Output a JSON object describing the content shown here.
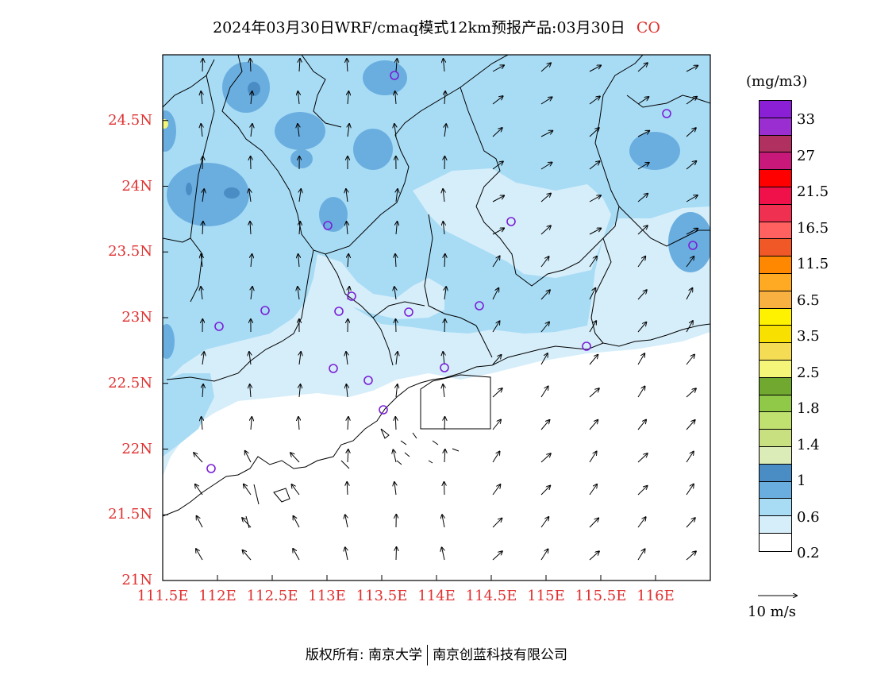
{
  "title": "2024年03月30日WRF/cmaq模式12km预报产品:03月30日",
  "species": "CO",
  "colors": {
    "title_species": "#e03030",
    "axis_labels": "#e03030",
    "station": "#7a1fd6",
    "pollutant_levels": [
      "#ffffff",
      "#d6eefa",
      "#a8dcf5",
      "#6aaee0",
      "#4a8cc4"
    ]
  },
  "axes": {
    "lat_labels": [
      "24.5N",
      "24N",
      "23.5N",
      "23N",
      "22.5N",
      "22N",
      "21.5N",
      "21N"
    ],
    "lon_labels": [
      "111.5E",
      "112E",
      "112.5E",
      "113E",
      "113.5E",
      "114E",
      "114.5E",
      "115E",
      "115.5E",
      "116E"
    ],
    "lat_range": [
      21.0,
      25.0
    ],
    "lon_range": [
      111.5,
      116.5
    ]
  },
  "legend": {
    "title": "(mg/m3)",
    "colors": [
      "#8b1fd6",
      "#9a2ed0",
      "#b03060",
      "#c8187a",
      "#ff0000",
      "#f0104a",
      "#f03050",
      "#ff6060",
      "#f05828",
      "#ff8800",
      "#ffaa22",
      "#f8b040",
      "#fff200",
      "#f8e000",
      "#f5dc55",
      "#f5f57a",
      "#70a830",
      "#90c848",
      "#c0e070",
      "#c8e080",
      "#dcecb8",
      "#4a8cc4",
      "#6aaee0",
      "#a8dcf5",
      "#d6eefa",
      "#ffffff"
    ],
    "labels": [
      "33",
      "27",
      "21.5",
      "16.5",
      "11.5",
      "6.5",
      "3.5",
      "2.5",
      "1.8",
      "1.4",
      "1",
      "0.6",
      "0.2"
    ]
  },
  "wind_reference": {
    "label": "10 m/s"
  },
  "footer": {
    "left": "版权所有: 南京大学",
    "right": "南京创蓝科技有限公司"
  }
}
